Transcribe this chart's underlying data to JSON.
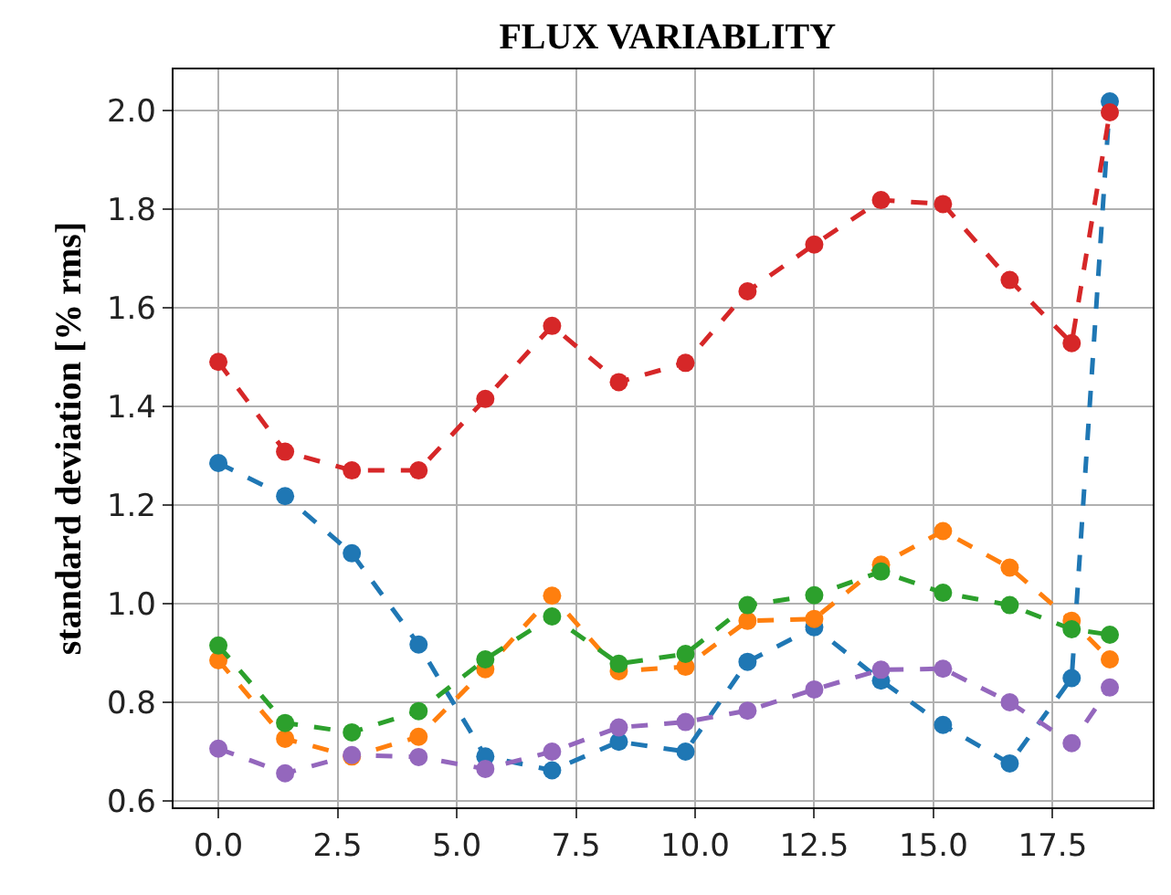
{
  "chart_data": {
    "type": "line",
    "title": "FLUX VARIABLITY",
    "ylabel": "standard deviation [% rms]",
    "x": [
      0,
      1.4,
      2.8,
      4.2,
      5.6,
      7.0,
      8.4,
      9.8,
      11.1,
      12.5,
      13.9,
      15.2,
      16.6,
      17.9,
      18.7
    ],
    "series": [
      {
        "color": "#1f77b4",
        "values": [
          1.285,
          1.218,
          1.102,
          0.917,
          0.69,
          0.662,
          0.72,
          0.7,
          0.882,
          0.952,
          0.844,
          0.754,
          0.676,
          0.849,
          2.018
        ]
      },
      {
        "color": "#ff7f0e",
        "values": [
          0.885,
          0.726,
          0.69,
          0.73,
          0.867,
          1.016,
          0.863,
          0.872,
          0.965,
          0.969,
          1.079,
          1.147,
          1.073,
          0.965,
          0.887
        ]
      },
      {
        "color": "#2ca02c",
        "values": [
          0.915,
          0.758,
          0.739,
          0.782,
          0.887,
          0.974,
          0.878,
          0.898,
          0.997,
          1.017,
          1.065,
          1.022,
          0.997,
          0.948,
          0.937
        ]
      },
      {
        "color": "#d62728",
        "values": [
          1.49,
          1.308,
          1.27,
          1.27,
          1.415,
          1.563,
          1.449,
          1.488,
          1.633,
          1.728,
          1.818,
          1.81,
          1.656,
          1.528,
          1.996
        ]
      },
      {
        "color": "#9467bd",
        "values": [
          0.706,
          0.656,
          0.693,
          0.689,
          0.665,
          0.7,
          0.749,
          0.76,
          0.783,
          0.826,
          0.866,
          0.868,
          0.8,
          0.717,
          0.83
        ]
      }
    ],
    "xlim": [
      -0.94,
      19.6
    ],
    "xticks": [
      {
        "value": 0,
        "label": "0.0"
      },
      {
        "value": 2.5,
        "label": "2.5"
      },
      {
        "value": 5,
        "label": "5.0"
      },
      {
        "value": 7.5,
        "label": "7.5"
      },
      {
        "value": 10,
        "label": "10.0"
      },
      {
        "value": 12.5,
        "label": "12.5"
      },
      {
        "value": 15,
        "label": "15.0"
      },
      {
        "value": 17.5,
        "label": "17.5"
      }
    ],
    "ylim": [
      0.587,
      2.083
    ],
    "yticks": [
      {
        "value": 0.6,
        "label": "0.6"
      },
      {
        "value": 0.8,
        "label": "0.8"
      },
      {
        "value": 1.0,
        "label": "1.0"
      },
      {
        "value": 1.2,
        "label": "1.2"
      },
      {
        "value": 1.4,
        "label": "1.4"
      },
      {
        "value": 1.6,
        "label": "1.6"
      },
      {
        "value": 1.8,
        "label": "1.8"
      },
      {
        "value": 2.0,
        "label": "2.0"
      }
    ],
    "grid": true,
    "marker": "circle",
    "line_style": "dashed"
  }
}
